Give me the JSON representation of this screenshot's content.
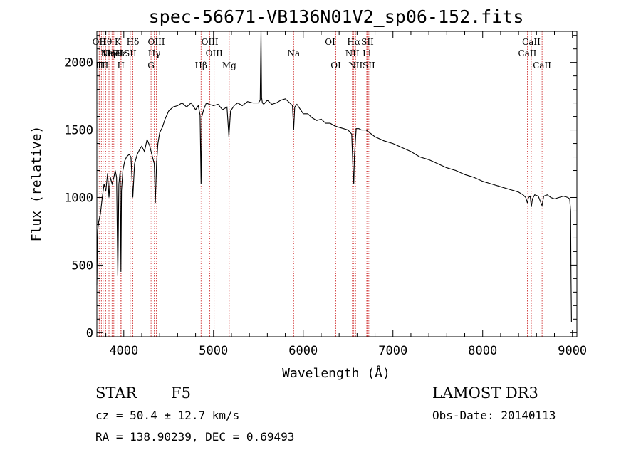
{
  "chart_data": {
    "type": "line",
    "title": "spec-56671-VB136N01V2_sp06-152.fits",
    "xlabel": "Wavelength (Å)",
    "ylabel": "Flux (relative)",
    "xlim": [
      3700,
      9050
    ],
    "ylim": [
      -30,
      2230
    ],
    "xticks": [
      4000,
      5000,
      6000,
      7000,
      8000,
      9000
    ],
    "yticks": [
      0,
      500,
      1000,
      1500,
      2000
    ],
    "series": [
      {
        "name": "spectrum",
        "x": [
          3700,
          3705,
          3710,
          3720,
          3740,
          3760,
          3780,
          3800,
          3820,
          3835,
          3850,
          3870,
          3890,
          3905,
          3920,
          3933,
          3945,
          3960,
          3968,
          3975,
          3990,
          4010,
          4030,
          4060,
          4080,
          4101,
          4120,
          4150,
          4180,
          4200,
          4230,
          4260,
          4290,
          4320,
          4340,
          4352,
          4365,
          4380,
          4400,
          4430,
          4460,
          4500,
          4550,
          4600,
          4650,
          4700,
          4750,
          4800,
          4830,
          4850,
          4861,
          4870,
          4890,
          4920,
          4950,
          5000,
          5050,
          5100,
          5150,
          5172,
          5190,
          5230,
          5270,
          5320,
          5380,
          5440,
          5500,
          5520,
          5530,
          5536,
          5545,
          5560,
          5600,
          5650,
          5700,
          5750,
          5800,
          5850,
          5880,
          5893,
          5905,
          5930,
          5960,
          6000,
          6050,
          6100,
          6150,
          6200,
          6250,
          6300,
          6350,
          6400,
          6450,
          6500,
          6540,
          6555,
          6563,
          6570,
          6590,
          6620,
          6650,
          6700,
          6800,
          6900,
          7000,
          7100,
          7200,
          7300,
          7400,
          7500,
          7600,
          7700,
          7800,
          7900,
          8000,
          8100,
          8200,
          8300,
          8400,
          8450,
          8480,
          8498,
          8510,
          8530,
          8542,
          8555,
          8580,
          8620,
          8662,
          8680,
          8720,
          8760,
          8800,
          8850,
          8900,
          8950,
          8970,
          8980,
          8985,
          8990
        ],
        "values": [
          350,
          600,
          760,
          820,
          880,
          1000,
          1100,
          1050,
          1180,
          1000,
          1150,
          1100,
          1150,
          1200,
          1150,
          420,
          1100,
          1200,
          450,
          1050,
          1200,
          1270,
          1300,
          1320,
          1300,
          1000,
          1250,
          1320,
          1360,
          1380,
          1340,
          1430,
          1380,
          1300,
          1250,
          960,
          1250,
          1400,
          1480,
          1520,
          1580,
          1640,
          1670,
          1680,
          1700,
          1670,
          1700,
          1650,
          1680,
          1610,
          1100,
          1600,
          1650,
          1700,
          1690,
          1680,
          1690,
          1650,
          1670,
          1450,
          1640,
          1680,
          1700,
          1680,
          1710,
          1700,
          1700,
          1720,
          2230,
          1740,
          1700,
          1690,
          1720,
          1690,
          1700,
          1720,
          1730,
          1700,
          1680,
          1500,
          1670,
          1690,
          1660,
          1620,
          1620,
          1590,
          1570,
          1580,
          1550,
          1550,
          1530,
          1520,
          1510,
          1500,
          1470,
          1200,
          1100,
          1300,
          1510,
          1510,
          1500,
          1500,
          1450,
          1420,
          1400,
          1370,
          1340,
          1300,
          1280,
          1250,
          1220,
          1200,
          1170,
          1150,
          1120,
          1100,
          1080,
          1060,
          1040,
          1020,
          1000,
          960,
          1000,
          1010,
          930,
          990,
          1020,
          1010,
          940,
          1010,
          1020,
          1000,
          990,
          1000,
          1010,
          1000,
          990,
          900,
          400,
          80
        ]
      }
    ],
    "lines": [
      {
        "x": 3726,
        "top": "OII",
        "mid": "",
        "bot": ""
      },
      {
        "x": 3750,
        "top": "",
        "mid": "",
        "bot": "HI"
      },
      {
        "x": 3770,
        "top": "",
        "mid": "",
        "bot": "HI"
      },
      {
        "x": 3798,
        "top": "Hθ",
        "mid": "",
        "bot": ""
      },
      {
        "x": 3835,
        "top": "",
        "mid": "Hη",
        "bot": ""
      },
      {
        "x": 3869,
        "top": "",
        "mid": "NeIII",
        "bot": ""
      },
      {
        "x": 3889,
        "top": "",
        "mid": "He",
        "bot": ""
      },
      {
        "x": 3933,
        "top": "K",
        "mid": "",
        "bot": ""
      },
      {
        "x": 3968,
        "top": "",
        "mid": "",
        "bot": "H"
      },
      {
        "x": 3970,
        "top": "",
        "mid": "Hε",
        "bot": ""
      },
      {
        "x": 4072,
        "top": "",
        "mid": "SII",
        "bot": ""
      },
      {
        "x": 4101,
        "top": "Hδ",
        "mid": "",
        "bot": ""
      },
      {
        "x": 4304,
        "top": "",
        "mid": "",
        "bot": "G"
      },
      {
        "x": 4340,
        "top": "",
        "mid": "Hγ",
        "bot": ""
      },
      {
        "x": 4363,
        "top": "OIII",
        "mid": "",
        "bot": ""
      },
      {
        "x": 4861,
        "top": "",
        "mid": "",
        "bot": "Hβ"
      },
      {
        "x": 4959,
        "top": "OIII",
        "mid": "",
        "bot": ""
      },
      {
        "x": 5007,
        "top": "",
        "mid": "OIII",
        "bot": ""
      },
      {
        "x": 5175,
        "top": "",
        "mid": "",
        "bot": "Mg"
      },
      {
        "x": 5893,
        "top": "",
        "mid": "Na",
        "bot": ""
      },
      {
        "x": 6300,
        "top": "OI",
        "mid": "",
        "bot": ""
      },
      {
        "x": 6363,
        "top": "",
        "mid": "",
        "bot": "OI"
      },
      {
        "x": 6548,
        "top": "",
        "mid": "NII",
        "bot": ""
      },
      {
        "x": 6563,
        "top": "Hα",
        "mid": "",
        "bot": ""
      },
      {
        "x": 6583,
        "top": "",
        "mid": "",
        "bot": "NII"
      },
      {
        "x": 6708,
        "top": "",
        "mid": "Li",
        "bot": ""
      },
      {
        "x": 6716,
        "top": "SII",
        "mid": "",
        "bot": ""
      },
      {
        "x": 6731,
        "top": "",
        "mid": "",
        "bot": "SII"
      },
      {
        "x": 8498,
        "top": "",
        "mid": "CaII",
        "bot": ""
      },
      {
        "x": 8542,
        "top": "CaII",
        "mid": "",
        "bot": ""
      },
      {
        "x": 8662,
        "top": "",
        "mid": "",
        "bot": "CaII"
      }
    ]
  },
  "info": {
    "object": "STAR",
    "subclass": "F5",
    "survey": "LAMOST DR3",
    "cz": "cz = 50.4 ± 12.7 km/s",
    "obs_date": "Obs-Date: 20140113",
    "coords": "RA = 138.90239, DEC =    0.69493"
  },
  "colors": {
    "line": "#000000",
    "marker": "#cc2222",
    "axis": "#000000"
  }
}
